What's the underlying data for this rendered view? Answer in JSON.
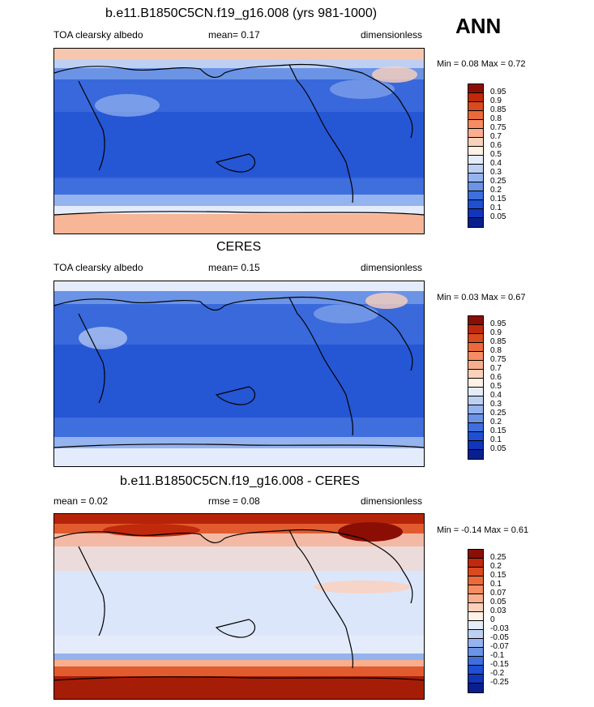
{
  "season": "ANN",
  "panels": [
    {
      "id": "model",
      "title": "b.e11.B1850C5CN.f19_g16.008 (yrs 981-1000)",
      "left_label": "TOA clearsky albedo",
      "center_label": "mean=  0.17",
      "right_label": "dimensionless",
      "minmax_text": "Min =  0.08 Max =  0.72",
      "colorbar_labels": [
        "0.95",
        "0.9",
        "0.85",
        "0.8",
        "0.75",
        "0.7",
        "0.6",
        "0.5",
        "0.4",
        "0.3",
        "0.25",
        "0.2",
        "0.15",
        "0.1",
        "0.05"
      ],
      "colorbar_colors": [
        "#8b0e04",
        "#c0290b",
        "#d94a1e",
        "#ea6a3c",
        "#f58c63",
        "#f9ae8e",
        "#fcd1bb",
        "#fff1e6",
        "#e4ecfb",
        "#bdd0f3",
        "#95b3ee",
        "#6b93e6",
        "#3f6edd",
        "#1f4fd2",
        "#1135bb",
        "#0a1f8e"
      ]
    },
    {
      "id": "obs",
      "title": "CERES",
      "left_label": "TOA clearsky albedo",
      "center_label": "mean=  0.15",
      "right_label": "dimensionless",
      "minmax_text": "Min =  0.03 Max =  0.67",
      "colorbar_labels": [
        "0.95",
        "0.9",
        "0.85",
        "0.8",
        "0.75",
        "0.7",
        "0.6",
        "0.5",
        "0.4",
        "0.3",
        "0.25",
        "0.2",
        "0.15",
        "0.1",
        "0.05"
      ],
      "colorbar_colors": [
        "#8b0e04",
        "#c0290b",
        "#d94a1e",
        "#ea6a3c",
        "#f58c63",
        "#f9ae8e",
        "#fcd1bb",
        "#fff1e6",
        "#e4ecfb",
        "#bdd0f3",
        "#95b3ee",
        "#6b93e6",
        "#3f6edd",
        "#1f4fd2",
        "#1135bb",
        "#0a1f8e"
      ]
    },
    {
      "id": "diff",
      "title": "b.e11.B1850C5CN.f19_g16.008 - CERES",
      "left_label": "mean =  0.02",
      "center_label": "rmse =  0.08",
      "right_label": "dimensionless",
      "minmax_text": "Min =  -0.14 Max =  0.61",
      "colorbar_labels": [
        "0.25",
        "0.2",
        "0.15",
        "0.1",
        "0.07",
        "0.05",
        "0.03",
        "0",
        "-0.03",
        "-0.05",
        "-0.07",
        "-0.1",
        "-0.15",
        "-0.2",
        "-0.25"
      ],
      "colorbar_colors": [
        "#8b0e04",
        "#c0290b",
        "#d94a1e",
        "#ea6a3c",
        "#f58c63",
        "#f9ae8e",
        "#fcd1bb",
        "#fff1e6",
        "#e4ecfb",
        "#bdd0f3",
        "#95b3ee",
        "#6b93e6",
        "#3f6edd",
        "#1f4fd2",
        "#1135bb",
        "#0a1f8e"
      ]
    }
  ]
}
